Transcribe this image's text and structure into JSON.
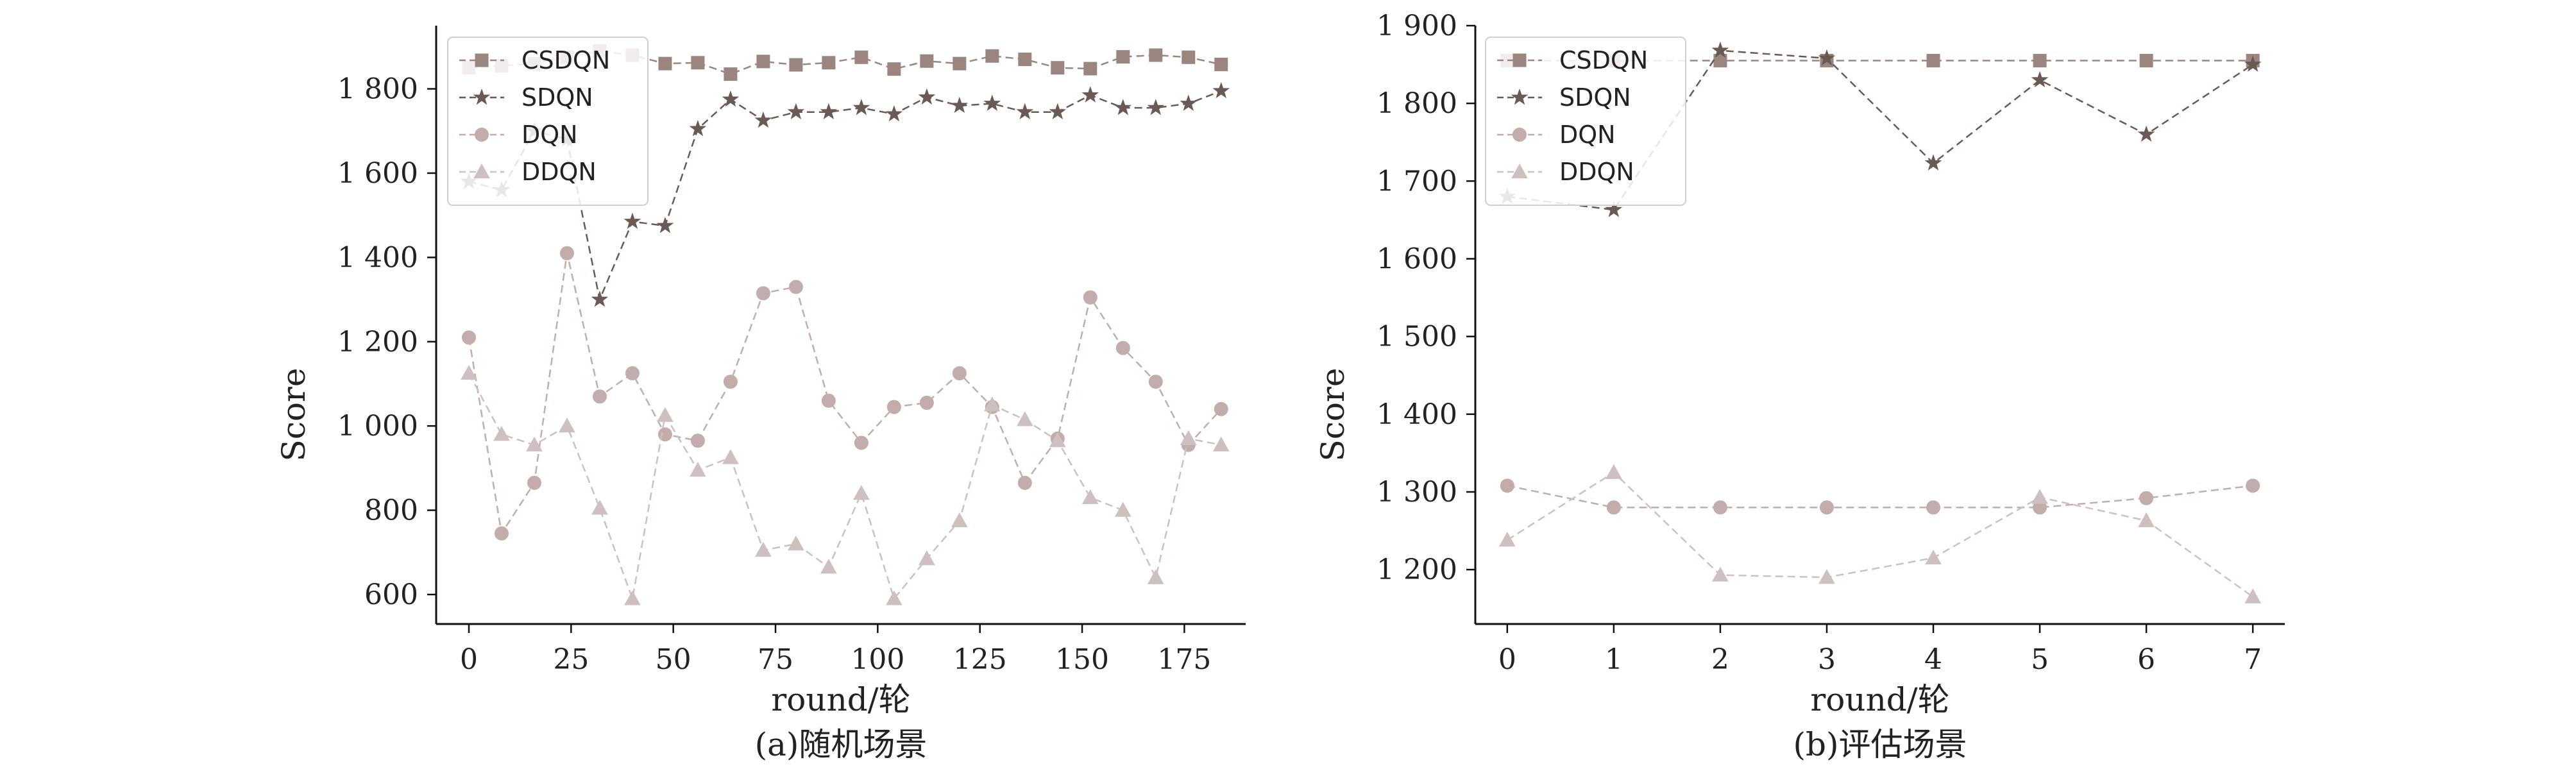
{
  "chart_data": [
    {
      "type": "line",
      "caption": "(a)随机场景",
      "xlabel": "round/轮",
      "ylabel": "Score",
      "xlim": [
        -8,
        190
      ],
      "ylim": [
        530,
        1950
      ],
      "xticks": [
        0,
        25,
        50,
        75,
        100,
        125,
        150,
        175
      ],
      "xtick_labels": [
        "0",
        "25",
        "50",
        "75",
        "100",
        "125",
        "150",
        "175"
      ],
      "yticks": [
        600,
        800,
        1000,
        1200,
        1400,
        1600,
        1800
      ],
      "ytick_labels": [
        "600",
        "800",
        "1 000",
        "1 200",
        "1 400",
        "1 600",
        "1 800"
      ],
      "legend_position": "top-left",
      "x": [
        0,
        8,
        16,
        24,
        32,
        40,
        48,
        56,
        64,
        72,
        80,
        88,
        96,
        104,
        112,
        120,
        128,
        136,
        144,
        152,
        160,
        168,
        176,
        184
      ],
      "series": [
        {
          "name": "CSDQN",
          "marker": "square",
          "color": "#9a8580",
          "values": [
            1850,
            1855,
            1860,
            1875,
            1890,
            1880,
            1860,
            1862,
            1835,
            1865,
            1857,
            1862,
            1875,
            1847,
            1866,
            1860,
            1878,
            1870,
            1850,
            1848,
            1876,
            1880,
            1875,
            1858
          ]
        },
        {
          "name": "SDQN",
          "marker": "star",
          "color": "#6a5a56",
          "values": [
            1580,
            1560,
            1700,
            1680,
            1300,
            1485,
            1475,
            1705,
            1775,
            1725,
            1745,
            1745,
            1755,
            1740,
            1780,
            1760,
            1765,
            1745,
            1745,
            1785,
            1755,
            1755,
            1765,
            1795
          ]
        },
        {
          "name": "DQN",
          "marker": "circle",
          "color": "#c2acac",
          "values": [
            1210,
            745,
            865,
            1410,
            1070,
            1125,
            980,
            965,
            1105,
            1315,
            1330,
            1060,
            960,
            1045,
            1055,
            1125,
            1045,
            865,
            970,
            1305,
            1185,
            1105,
            955,
            1040
          ]
        },
        {
          "name": "DDQN",
          "marker": "triangle",
          "color": "#cec0c0",
          "values": [
            1125,
            980,
            955,
            1000,
            805,
            590,
            1025,
            895,
            925,
            705,
            720,
            665,
            840,
            590,
            685,
            775,
            1050,
            1015,
            965,
            830,
            800,
            640,
            970,
            955
          ]
        }
      ]
    },
    {
      "type": "line",
      "caption": "(b)评估场景",
      "xlabel": "round/轮",
      "ylabel": "Score",
      "xlim": [
        -0.3,
        7.3
      ],
      "ylim": [
        1130,
        1900
      ],
      "xticks": [
        0,
        1,
        2,
        3,
        4,
        5,
        6,
        7
      ],
      "xtick_labels": [
        "0",
        "1",
        "2",
        "3",
        "4",
        "5",
        "6",
        "7"
      ],
      "yticks": [
        1200,
        1300,
        1400,
        1500,
        1600,
        1700,
        1800,
        1900
      ],
      "ytick_labels": [
        "1 200",
        "1 300",
        "1 400",
        "1 500",
        "1 600",
        "1 700",
        "1 800",
        "1 900"
      ],
      "legend_position": "top-left",
      "x": [
        0,
        1,
        2,
        3,
        4,
        5,
        6,
        7
      ],
      "series": [
        {
          "name": "CSDQN",
          "marker": "square",
          "color": "#9a8580",
          "values": [
            1855,
            1855,
            1855,
            1855,
            1855,
            1855,
            1855,
            1855
          ]
        },
        {
          "name": "SDQN",
          "marker": "star",
          "color": "#6a5a56",
          "values": [
            1680,
            1663,
            1868,
            1858,
            1723,
            1830,
            1760,
            1850
          ]
        },
        {
          "name": "DQN",
          "marker": "circle",
          "color": "#c2acac",
          "values": [
            1308,
            1280,
            1280,
            1280,
            1280,
            1280,
            1292,
            1308
          ]
        },
        {
          "name": "DDQN",
          "marker": "triangle",
          "color": "#cec0c0",
          "values": [
            1238,
            1325,
            1193,
            1190,
            1215,
            1293,
            1263,
            1165
          ]
        }
      ]
    }
  ]
}
